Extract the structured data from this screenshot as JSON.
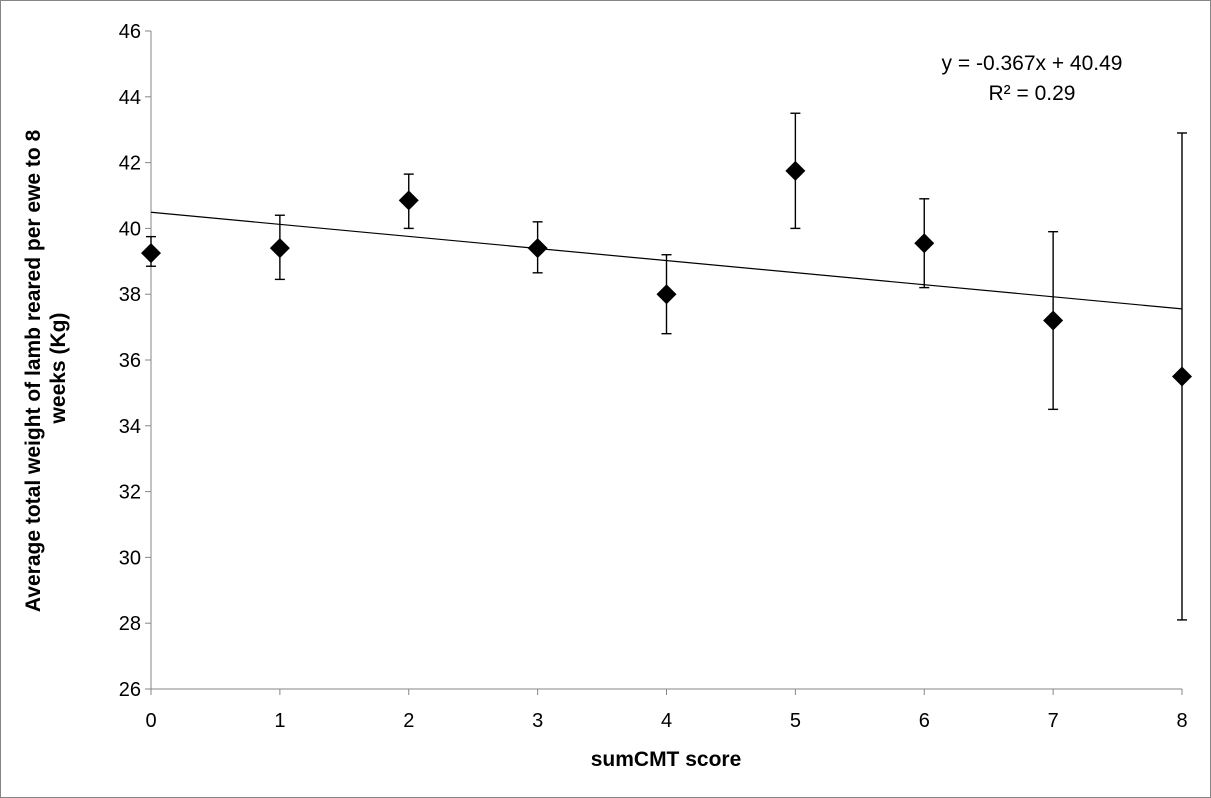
{
  "chart_data": {
    "type": "scatter",
    "title": "",
    "xlabel": "sumCMT score",
    "ylabel_lines": [
      "Average total weight of lamb reared per ewe to 8",
      "weeks (Kg)"
    ],
    "xlim": [
      0,
      8
    ],
    "ylim": [
      26,
      46
    ],
    "x_ticks": [
      "0",
      "1",
      "2",
      "3",
      "4",
      "5",
      "6",
      "7",
      "8"
    ],
    "y_ticks": [
      "26",
      "28",
      "30",
      "32",
      "34",
      "36",
      "38",
      "40",
      "42",
      "44",
      "46"
    ],
    "grid": false,
    "marker": "diamond",
    "marker_color": "#000000",
    "points": [
      {
        "x": 0,
        "y": 39.25,
        "err_low": 38.85,
        "err_high": 39.75
      },
      {
        "x": 1,
        "y": 39.4,
        "err_low": 38.45,
        "err_high": 40.4
      },
      {
        "x": 2,
        "y": 40.85,
        "err_low": 40.0,
        "err_high": 41.65
      },
      {
        "x": 3,
        "y": 39.4,
        "err_low": 38.65,
        "err_high": 40.2
      },
      {
        "x": 4,
        "y": 38.0,
        "err_low": 36.8,
        "err_high": 39.2
      },
      {
        "x": 5,
        "y": 41.75,
        "err_low": 40.0,
        "err_high": 43.5
      },
      {
        "x": 6,
        "y": 39.55,
        "err_low": 38.2,
        "err_high": 40.9
      },
      {
        "x": 7,
        "y": 37.2,
        "err_low": 34.5,
        "err_high": 39.9
      },
      {
        "x": 8,
        "y": 35.5,
        "err_low": 28.1,
        "err_high": 42.9
      }
    ],
    "trendline": {
      "slope": -0.367,
      "intercept": 40.49
    },
    "annotations": {
      "equation": "y = -0.367x + 40.49",
      "r_squared": "R² = 0.29"
    }
  }
}
